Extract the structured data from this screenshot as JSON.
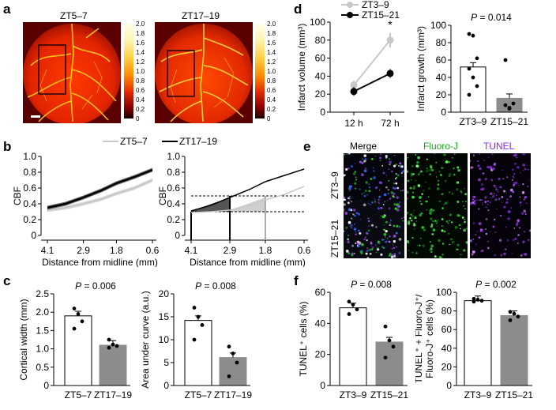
{
  "panels": {
    "a": "a",
    "b": "b",
    "c": "c",
    "d": "d",
    "e": "e",
    "f": "f"
  },
  "panel_a": {
    "left_title": "ZT5–7",
    "right_title": "ZT17–19",
    "colorbar_ticks": [
      "2.0",
      "1.8",
      "1.6",
      "1.4",
      "1.2",
      "1.0",
      "0.8",
      "0.6",
      "0.4",
      "0.2",
      "0"
    ]
  },
  "panel_b": {
    "legend": [
      {
        "label": "ZT5–7",
        "color": "#c8c8c8"
      },
      {
        "label": "ZT17–19",
        "color": "#000000"
      }
    ]
  },
  "panel_e": {
    "col_headers": [
      "Merge",
      "Fluoro-J",
      "TUNEL"
    ],
    "header_colors": [
      "#000000",
      "#1aa51a",
      "#8a2be2"
    ],
    "row_labels": [
      "ZT3–9",
      "ZT15–21"
    ]
  },
  "chart_data": [
    {
      "id": "b-left",
      "type": "line",
      "ylabel": "CBF",
      "xlabel": "Distance from midline (mm)",
      "xticks": [
        "4.1",
        "2.9",
        "1.8",
        "0.6"
      ],
      "yticks": [
        "0",
        "0.2",
        "0.4",
        "0.6",
        "0.8",
        "1.0"
      ],
      "ylim": [
        0,
        1.0
      ],
      "series": [
        {
          "name": "ZT5–7",
          "color": "#c8c8c8",
          "x": [
            4.1,
            3.5,
            2.9,
            2.3,
            1.8,
            1.2,
            0.6
          ],
          "values": [
            0.32,
            0.35,
            0.4,
            0.46,
            0.53,
            0.6,
            0.7
          ]
        },
        {
          "name": "ZT17–19",
          "color": "#000000",
          "x": [
            4.1,
            3.5,
            2.9,
            2.3,
            1.8,
            1.2,
            0.6
          ],
          "values": [
            0.35,
            0.4,
            0.48,
            0.57,
            0.66,
            0.74,
            0.83
          ]
        }
      ]
    },
    {
      "id": "b-right",
      "type": "area",
      "ylabel": "CBF",
      "xlabel": "Distance from midline (mm)",
      "xticks": [
        "4.1",
        "2.9",
        "1.8",
        "0.6"
      ],
      "yticks": [
        "0",
        "0.2",
        "0.4",
        "0.6",
        "0.8",
        "1.0"
      ],
      "ylim": [
        0,
        1.0
      ],
      "series": [
        {
          "name": "ZT5–7",
          "color": "#c8c8c8",
          "x": [
            4.1,
            3.5,
            2.9,
            2.3,
            1.8,
            1.2,
            0.6
          ],
          "values": [
            0.29,
            0.3,
            0.32,
            0.38,
            0.45,
            0.52,
            0.62
          ]
        },
        {
          "name": "ZT17–19",
          "color": "#000000",
          "x": [
            4.1,
            3.5,
            2.9,
            2.3,
            1.8,
            1.2,
            0.6
          ],
          "values": [
            0.31,
            0.38,
            0.48,
            0.58,
            0.68,
            0.76,
            0.84
          ]
        }
      ],
      "thresholds": [
        0.5,
        0.3
      ]
    },
    {
      "id": "c-left",
      "type": "bar",
      "title": "P = 0.006",
      "ylabel": "Cortical width (mm)",
      "categories": [
        "ZT5–7",
        "ZT17–19"
      ],
      "values": [
        1.9,
        1.1
      ],
      "points": [
        [
          2.1,
          1.95,
          1.75,
          1.55
        ],
        [
          1.25,
          1.12,
          1.08,
          1.03
        ]
      ],
      "ylim": [
        0,
        2.5
      ],
      "yticks": [
        "0",
        "0.5",
        "1.0",
        "1.5",
        "2.0",
        "2.5"
      ]
    },
    {
      "id": "c-right",
      "type": "bar",
      "title": "P = 0.008",
      "ylabel": "Area under curve (a.u.)",
      "categories": [
        "ZT5–7",
        "ZT17–19"
      ],
      "values": [
        14.2,
        6.1
      ],
      "points": [
        [
          17.0,
          15.0,
          13.2,
          10.0
        ],
        [
          8.5,
          7.0,
          5.0,
          2.0
        ]
      ],
      "ylim": [
        0,
        20
      ],
      "yticks": [
        "0",
        "5",
        "10",
        "15",
        "20"
      ]
    },
    {
      "id": "d-left",
      "type": "line",
      "ylabel": "Infarct volume (mm³)",
      "categories": [
        "12 h",
        "72 h"
      ],
      "series": [
        {
          "name": "ZT3–9",
          "color": "#c8c8c8",
          "values": [
            30,
            80
          ]
        },
        {
          "name": "ZT15–21",
          "color": "#000000",
          "values": [
            23,
            43
          ]
        }
      ],
      "annotation": "*",
      "ylim": [
        0,
        100
      ],
      "yticks": [
        "0",
        "20",
        "40",
        "60",
        "80",
        "100"
      ]
    },
    {
      "id": "d-right",
      "type": "bar",
      "title": "P = 0.014",
      "ylabel": "Infarct growth (mm³)",
      "categories": [
        "ZT3–9",
        "ZT15–21"
      ],
      "values": [
        52,
        16
      ],
      "points": [
        [
          90,
          88,
          62,
          50,
          40,
          30,
          20
        ],
        [
          60,
          5,
          10,
          8,
          4
        ]
      ],
      "ylim": [
        0,
        100
      ],
      "yticks": [
        "0",
        "20",
        "40",
        "60",
        "80",
        "100"
      ]
    },
    {
      "id": "f-left",
      "type": "bar",
      "title": "P = 0.008",
      "ylabel": "TUNEL⁺ cells (%)",
      "categories": [
        "ZT3–9",
        "ZT15–21"
      ],
      "values": [
        50,
        28
      ],
      "points": [
        [
          54,
          52,
          49,
          46
        ],
        [
          38,
          29,
          25,
          18
        ]
      ],
      "ylim": [
        0,
        60
      ],
      "yticks": [
        "0",
        "20",
        "40",
        "60"
      ]
    },
    {
      "id": "f-right",
      "type": "bar",
      "title": "P = 0.002",
      "ylabel": "TUNEL⁺ + Fluoro-J⁺/ Fluoro-J⁺ cells (%)",
      "categories": [
        "ZT3–9",
        "ZT15–21"
      ],
      "values": [
        91,
        75
      ],
      "points": [
        [
          93,
          92,
          91,
          90
        ],
        [
          79,
          77,
          74,
          70
        ]
      ],
      "ylim": [
        0,
        100
      ],
      "yticks": [
        "0",
        "20",
        "40",
        "60",
        "80",
        "100"
      ]
    }
  ]
}
